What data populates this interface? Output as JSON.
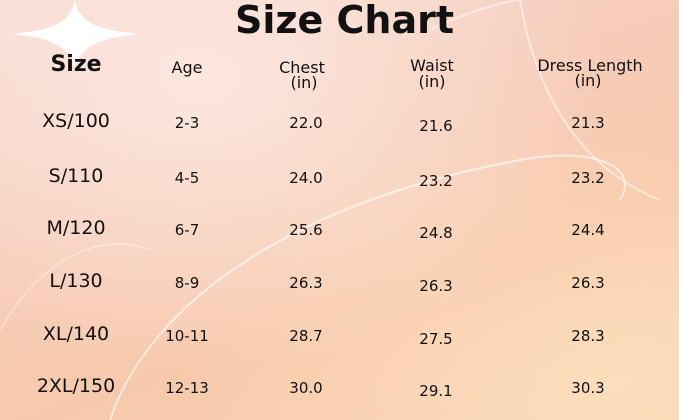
{
  "title": "Size Chart",
  "headers": [
    "Size",
    "Age",
    "Chest\n(in)",
    "Waist\n(in)",
    "Dress Length\n(in)"
  ],
  "header_lines": {
    "size": "Size",
    "age": "Age",
    "chest": "Chest",
    "chest_unit": "(in)",
    "waist": "Waist",
    "waist_unit": "(in)",
    "dress": "Dress Length",
    "dress_unit": "(in)"
  },
  "rows": [
    {
      "size": "XS/100",
      "age": "2-3",
      "chest": "22.0",
      "waist": "21.6",
      "dress": "21.3"
    },
    {
      "size": "S/110",
      "age": "4-5",
      "chest": "24.0",
      "waist": "23.2",
      "dress": "23.2"
    },
    {
      "size": "M/120",
      "age": "6-7",
      "chest": "25.6",
      "waist": "24.8",
      "dress": "24.4"
    },
    {
      "size": "L/130",
      "age": "8-9",
      "chest": "26.3",
      "waist": "26.3",
      "dress": "26.3"
    },
    {
      "size": "XL/140",
      "age": "10-11",
      "chest": "28.7",
      "waist": "27.5",
      "dress": "28.3"
    },
    {
      "size": "2XL/150",
      "age": "12-13",
      "chest": "30.0",
      "waist": "29.1",
      "dress": "30.3"
    }
  ]
}
